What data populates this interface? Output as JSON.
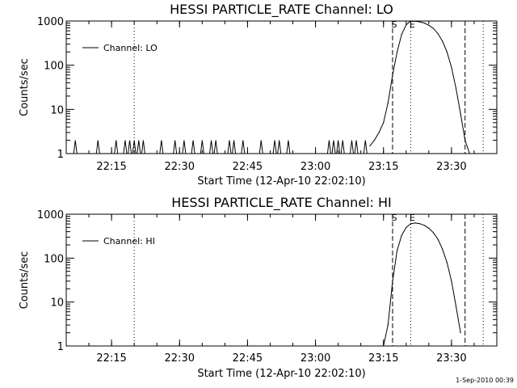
{
  "chart_data": [
    {
      "type": "line",
      "title": "HESSI PARTICLE_RATE Channel: LO",
      "xlabel": "Start Time (12-Apr-10 22:02:10)",
      "ylabel": "Counts/sec",
      "yscale": "log",
      "ylim": [
        1,
        1000
      ],
      "xlim": [
        "22:05",
        "23:40"
      ],
      "x_ticks": [
        "22:15",
        "22:30",
        "22:45",
        "23:00",
        "23:15",
        "23:30"
      ],
      "y_ticks": [
        "1",
        "10",
        "100",
        "1000"
      ],
      "legend": {
        "position": "top-left",
        "entries": [
          "Channel: LO"
        ]
      },
      "grid": false,
      "markers": [
        {
          "label": "",
          "x": "22:20",
          "style": "dotted"
        },
        {
          "label": "S",
          "x": "23:17",
          "style": "dashed"
        },
        {
          "label": "E",
          "x": "23:21",
          "style": "dotted"
        },
        {
          "label": "",
          "x": "23:33",
          "style": "dashed"
        },
        {
          "label": "",
          "x": "23:37",
          "style": "dotted"
        }
      ],
      "series": [
        {
          "name": "Channel: LO",
          "spikes": [
            "22:07",
            "22:12",
            "22:16",
            "22:18",
            "22:19",
            "22:20",
            "22:21",
            "22:22",
            "22:26",
            "22:29",
            "22:31",
            "22:33",
            "22:35",
            "22:37",
            "22:38",
            "22:41",
            "22:42",
            "22:44",
            "22:48",
            "22:51",
            "22:52",
            "22:54",
            "23:03",
            "23:04",
            "23:05",
            "23:06",
            "23:08",
            "23:09",
            "23:11"
          ],
          "spike_value": 2,
          "x": [
            "23:12",
            "23:13",
            "23:14",
            "23:15",
            "23:16",
            "23:17",
            "23:18",
            "23:19",
            "23:20",
            "23:21",
            "23:22",
            "23:23",
            "23:24",
            "23:25",
            "23:26",
            "23:27",
            "23:28",
            "23:29",
            "23:30",
            "23:31",
            "23:32",
            "23:33",
            "23:34"
          ],
          "values": [
            1.5,
            2,
            3,
            5,
            14,
            60,
            200,
            500,
            820,
            1000,
            990,
            960,
            900,
            800,
            680,
            520,
            350,
            200,
            90,
            30,
            8,
            2,
            1
          ]
        }
      ]
    },
    {
      "type": "line",
      "title": "HESSI PARTICLE_RATE Channel: HI",
      "xlabel": "Start Time (12-Apr-10 22:02:10)",
      "ylabel": "Counts/sec",
      "yscale": "log",
      "ylim": [
        1,
        1000
      ],
      "xlim": [
        "22:05",
        "23:40"
      ],
      "x_ticks": [
        "22:15",
        "22:30",
        "22:45",
        "23:00",
        "23:15",
        "23:30"
      ],
      "y_ticks": [
        "1",
        "10",
        "100",
        "1000"
      ],
      "legend": {
        "position": "top-left",
        "entries": [
          "Channel: HI"
        ]
      },
      "grid": false,
      "markers": [
        {
          "label": "",
          "x": "22:20",
          "style": "dotted"
        },
        {
          "label": "S",
          "x": "23:17",
          "style": "dashed"
        },
        {
          "label": "E",
          "x": "23:21",
          "style": "dotted"
        },
        {
          "label": "",
          "x": "23:33",
          "style": "dashed"
        },
        {
          "label": "",
          "x": "23:37",
          "style": "dotted"
        }
      ],
      "series": [
        {
          "name": "Channel: HI",
          "spikes": [],
          "spike_value": 2,
          "x": [
            "23:15",
            "23:16",
            "23:17",
            "23:18",
            "23:19",
            "23:20",
            "23:21",
            "23:22",
            "23:23",
            "23:24",
            "23:25",
            "23:26",
            "23:27",
            "23:28",
            "23:29",
            "23:30",
            "23:31",
            "23:32"
          ],
          "values": [
            1,
            3,
            30,
            150,
            330,
            500,
            610,
            630,
            610,
            560,
            480,
            380,
            270,
            160,
            80,
            30,
            8,
            2
          ]
        }
      ]
    }
  ],
  "footer": {
    "timestamp": "1-Sep-2010 00:39"
  }
}
